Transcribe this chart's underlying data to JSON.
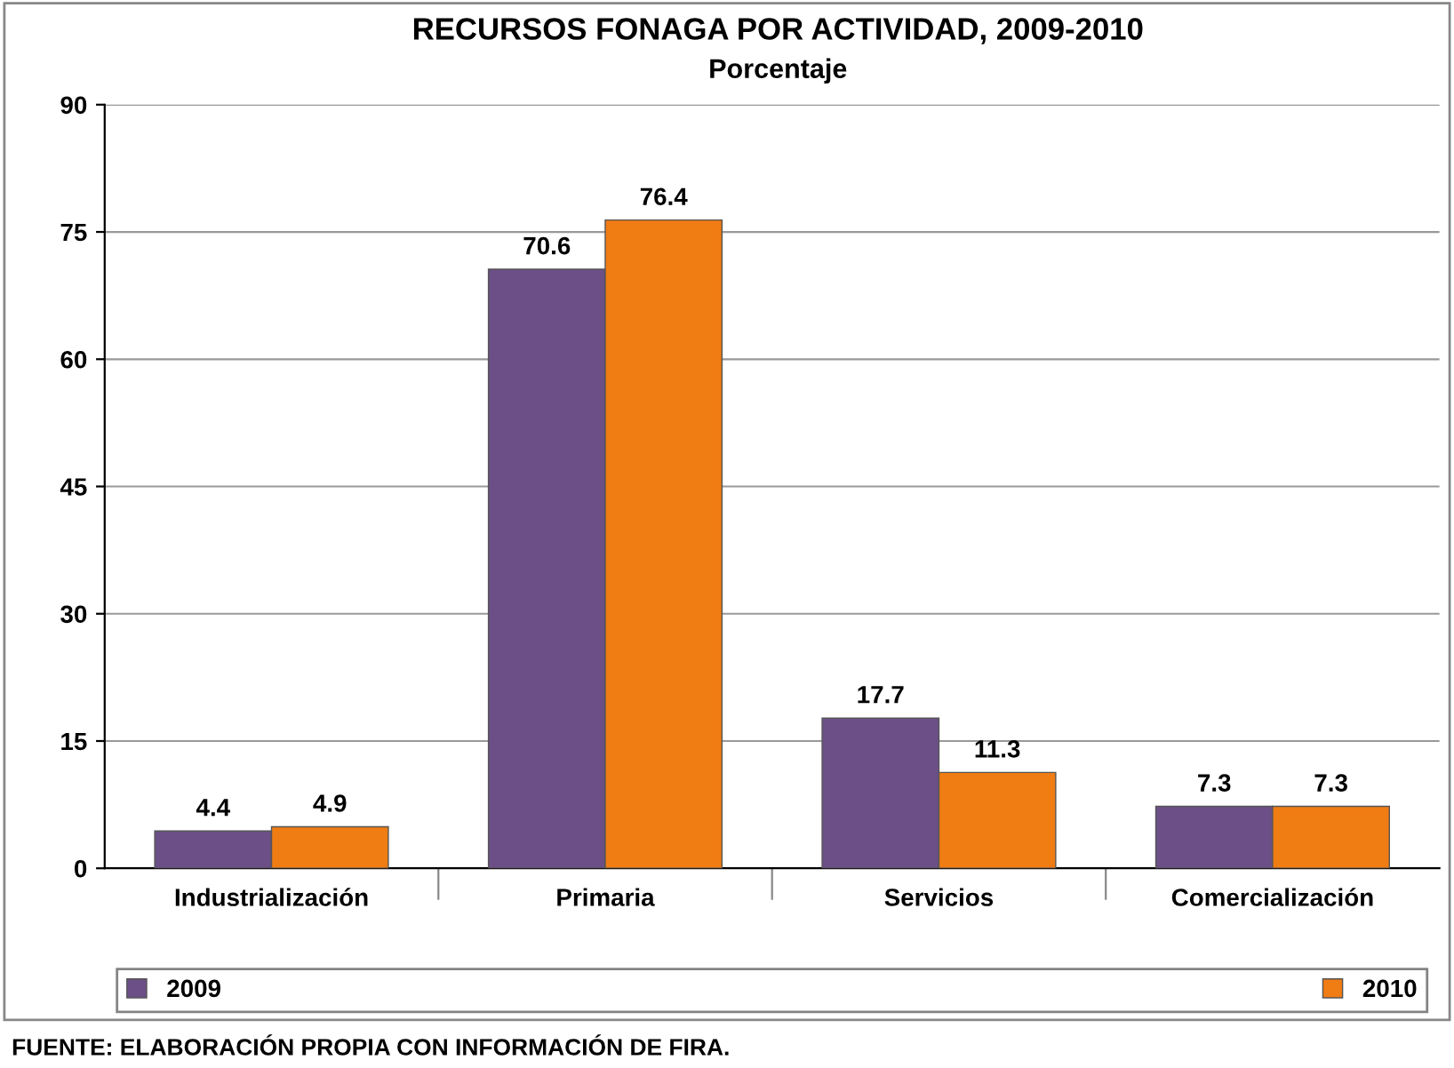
{
  "chart_data": {
    "type": "bar",
    "title": "RECURSOS FONAGA POR ACTIVIDAD, 2009-2010",
    "subtitle": "Porcentaje",
    "categories": [
      "Industrialización",
      "Primaria",
      "Servicios",
      "Comercialización"
    ],
    "series": [
      {
        "name": "2009",
        "color": "#6b4f86",
        "values": [
          4.4,
          70.6,
          17.7,
          7.3
        ]
      },
      {
        "name": "2010",
        "color": "#f07c14",
        "values": [
          4.9,
          76.4,
          11.3,
          7.3
        ]
      }
    ],
    "ylim": [
      0,
      90
    ],
    "yticks": [
      0,
      15,
      30,
      45,
      60,
      75,
      90
    ],
    "grid": "y",
    "legend": "bottom",
    "data_labels": true,
    "annotations": [
      "FUENTE: ELABORACIÓN PROPIA CON INFORMACIÓN DE FIRA."
    ]
  }
}
